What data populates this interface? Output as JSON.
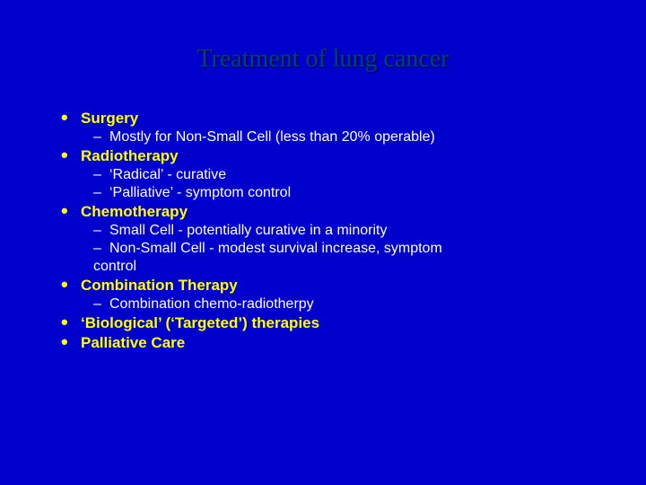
{
  "slide": {
    "title": "Treatment of lung cancer",
    "background_color": "#0000cc",
    "title_color": "#004080",
    "heading_color": "#ffff00",
    "body_color": "#ffffff",
    "title_font": "Times New Roman",
    "body_font": "Verdana",
    "title_fontsize": 28,
    "heading_fontsize": 17,
    "body_fontsize": 16,
    "items": [
      {
        "label": "Surgery",
        "sub": [
          "Mostly for Non-Small Cell (less than 20% operable)"
        ]
      },
      {
        "label": "Radiotherapy",
        "sub": [
          "‘Radical’ -  curative",
          "‘Palliative’ - symptom control"
        ]
      },
      {
        "label": "Chemotherapy",
        "sub": [
          "Small Cell - potentially curative in a minority",
          "Non-Small Cell - modest survival increase, symptom"
        ],
        "wrap": "control"
      },
      {
        "label": "Combination Therapy",
        "sub": [
          "Combination chemo-radiotherpy"
        ]
      },
      {
        "label": "‘Biological’ (‘Targeted’) therapies",
        "sub": []
      },
      {
        "label": "Palliative Care",
        "sub": []
      }
    ]
  }
}
